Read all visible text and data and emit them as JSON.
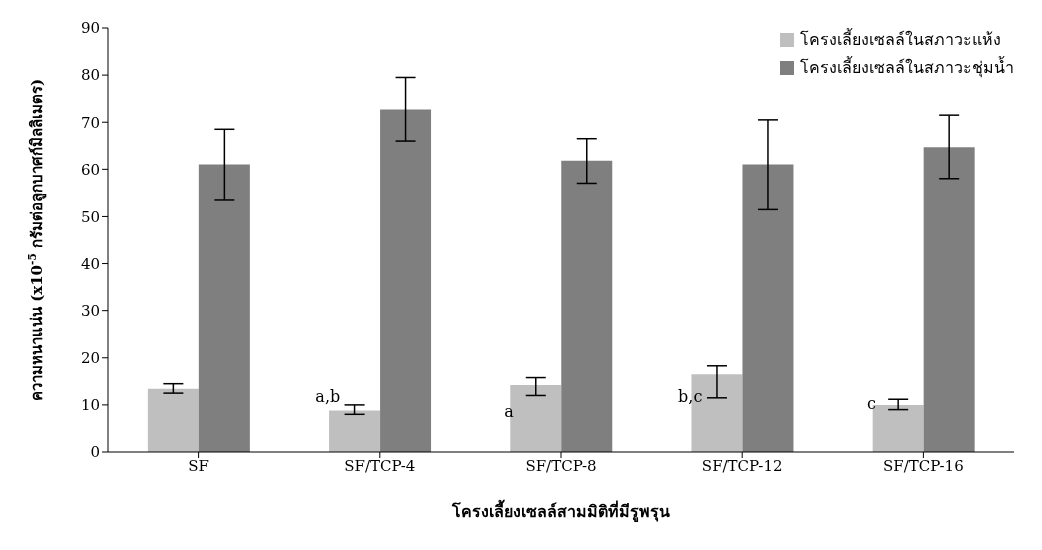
{
  "chart_data": {
    "type": "bar",
    "xlabel": "โครงเลี้ยงเซลล์สามมิติที่มีรูพรุน",
    "ylabel": "ความหนาแน่น (x10$^{-5}$ กรัมต่อลูกบาศก์มิลลิเมตร)",
    "categories": [
      "SF",
      "SF/TCP-4",
      "SF/TCP-8",
      "SF/TCP-12",
      "SF/TCP-16"
    ],
    "series": [
      {
        "name": "โครงเลี้ยงเซลล์ในสภาวะแห้ง",
        "color": "#bfbfbf",
        "values": [
          13.4,
          8.8,
          14.2,
          16.5,
          10
        ],
        "errors": [
          [
            12.5,
            14.5
          ],
          [
            8,
            10
          ],
          [
            12,
            15.8
          ],
          [
            11.5,
            18.3
          ],
          [
            9,
            11.2
          ]
        ]
      },
      {
        "name": "โครงเลี้ยงเซลล์ในสภาวะชุ่มน้ำ",
        "color": "#7f7f7f",
        "values": [
          61,
          72.7,
          61.8,
          61,
          64.7
        ],
        "errors": [
          [
            53.5,
            68.5
          ],
          [
            66,
            79.5
          ],
          [
            57,
            66.5
          ],
          [
            51.5,
            70.5
          ],
          [
            58,
            71.5
          ]
        ]
      }
    ],
    "annotations": [
      {
        "text": "a,b",
        "x": "SF/TCP-4",
        "y": 11.7
      },
      {
        "text": "a",
        "x": "SF/TCP-8",
        "y": 8.7
      },
      {
        "text": "b,c",
        "x": "SF/TCP-12",
        "y": 11.7
      },
      {
        "text": "c",
        "x": "SF/TCP-16",
        "y": 10.4
      }
    ],
    "ylim": [
      0,
      90
    ],
    "yticks": [
      0,
      10,
      20,
      30,
      40,
      50,
      60,
      70,
      80,
      90
    ],
    "grid": false,
    "legend": "top right"
  }
}
